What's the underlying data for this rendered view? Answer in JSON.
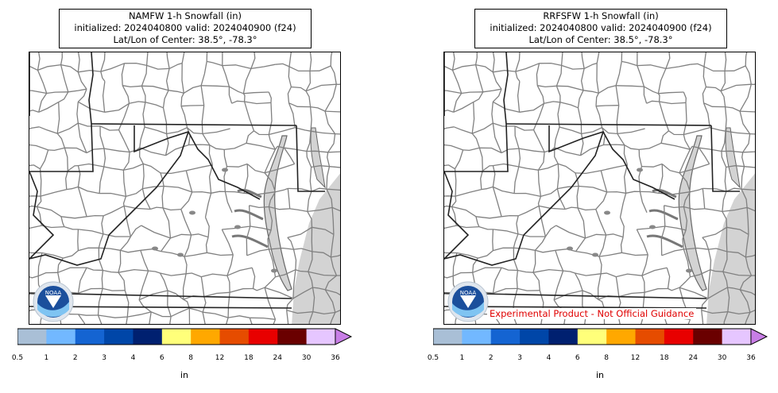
{
  "panels": [
    {
      "title_line1": "NAMFW 1-h Snowfall (in)",
      "title_line2": "initialized: 2024040800 valid: 2024040900 (f24)",
      "title_line3": "Lat/Lon of Center: 38.5°, -78.3°",
      "footer_label": ""
    },
    {
      "title_line1": "RRFSFW 1-h Snowfall (in)",
      "title_line2": "initialized: 2024040800 valid: 2024040900 (f24)",
      "title_line3": "Lat/Lon of Center: 38.5°, -78.3°",
      "footer_label": "Experimental Product - Not Official Guidance"
    }
  ],
  "logo": {
    "text": "NOAA",
    "icon": "noaa-logo-icon"
  },
  "colorbar": {
    "units": "in",
    "tick_labels": [
      "0.5",
      "1",
      "2",
      "3",
      "4",
      "6",
      "8",
      "12",
      "18",
      "24",
      "30",
      "36"
    ],
    "colors": [
      "#a9bfd6",
      "#72b8ff",
      "#1464d2",
      "#0046a8",
      "#002070",
      "#ffff7a",
      "#ffa800",
      "#e64c00",
      "#e80000",
      "#6a0000",
      "#e6c6ff"
    ],
    "extend_color": "#c87ee6"
  },
  "map_colors": {
    "water": "#d3d3d3",
    "county_line": "#808080",
    "state_line": "#222222",
    "land": "#ffffff"
  }
}
